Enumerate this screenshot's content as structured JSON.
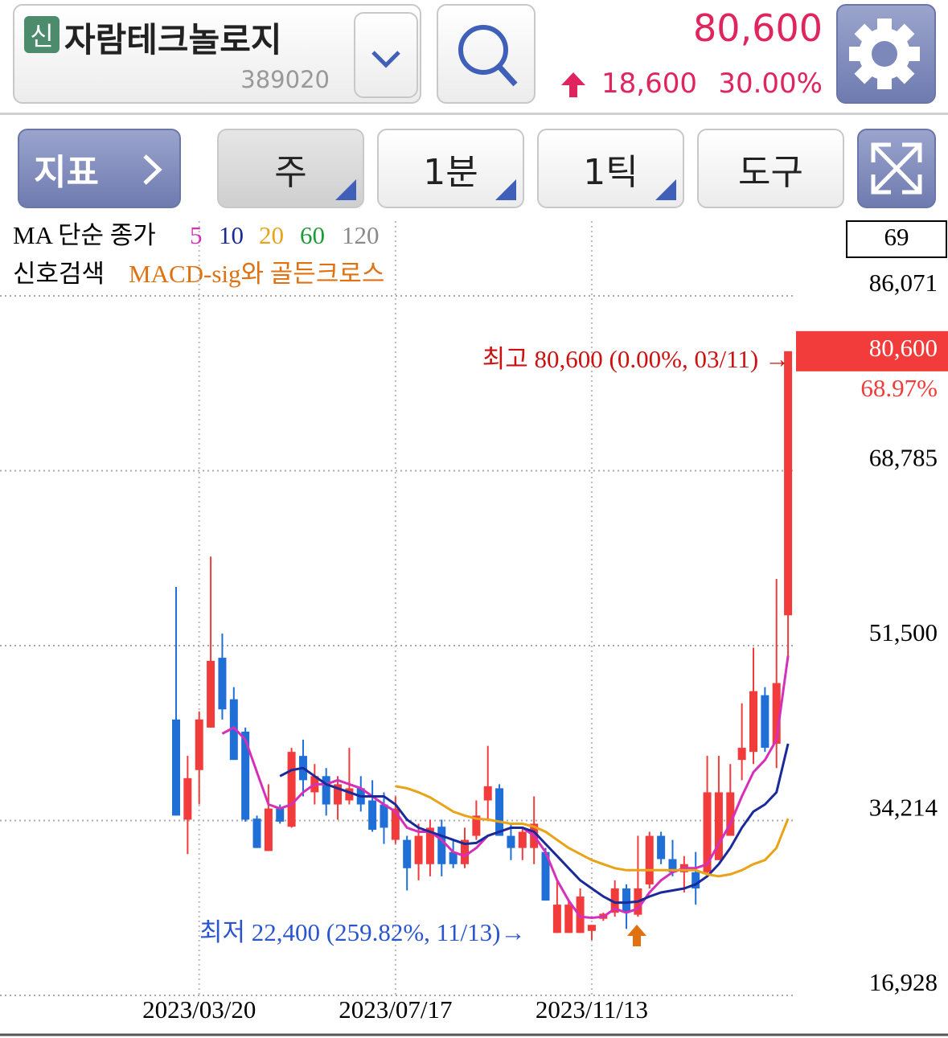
{
  "header": {
    "badge": "신",
    "name": "자람테크놀로지",
    "code": "389020",
    "price": "80,600",
    "change": "18,600",
    "change_pct": "30.00%"
  },
  "toolbar": {
    "indicator": "지표",
    "period": "주",
    "minute": "1분",
    "tick": "1틱",
    "tools": "도구"
  },
  "chart_data": {
    "type": "candlestick",
    "categories": [
      null,
      null,
      "2023/03/20",
      null,
      null,
      null,
      null,
      null,
      null,
      null,
      null,
      null,
      null,
      null,
      null,
      null,
      null,
      null,
      null,
      "2023/07/17",
      null,
      null,
      null,
      null,
      null,
      null,
      null,
      null,
      null,
      null,
      null,
      null,
      null,
      null,
      null,
      null,
      "2023/11/13",
      null,
      null,
      null,
      null,
      null,
      null,
      null,
      null,
      null,
      null,
      null,
      null,
      null,
      null,
      null,
      null,
      null
    ],
    "open": [
      44200,
      34300,
      39200,
      43400,
      50300,
      46200,
      43000,
      34400,
      31200,
      35400,
      33600,
      40600,
      37000,
      38600,
      35800,
      36200,
      37400,
      36200,
      35800,
      32300,
      32300,
      29900,
      29900,
      33600,
      31100,
      29900,
      32700,
      36200,
      37400,
      32700,
      31500,
      31500,
      31100,
      23100,
      23100,
      23100,
      23300,
      24500,
      25100,
      27500,
      24900,
      27900,
      32700,
      30400,
      29100,
      29100,
      29100,
      30300,
      32700,
      40200,
      41000,
      46600,
      41800,
      54500
    ],
    "high": [
      57300,
      40600,
      45000,
      60300,
      52700,
      47400,
      43400,
      34700,
      37800,
      35800,
      41400,
      42200,
      39800,
      39400,
      38600,
      41400,
      38600,
      38200,
      37000,
      36600,
      32700,
      33900,
      34300,
      34300,
      32300,
      33500,
      36200,
      41600,
      37800,
      33900,
      33500,
      36600,
      31500,
      28300,
      26300,
      27500,
      23900,
      25100,
      28300,
      27900,
      32700,
      33100,
      33100,
      32300,
      30700,
      31100,
      40600,
      40600,
      39800,
      45800,
      51300,
      47400,
      58100,
      80600
    ],
    "low": [
      34700,
      30900,
      35800,
      43400,
      44200,
      40200,
      34100,
      31500,
      31200,
      33900,
      33500,
      36600,
      35800,
      34700,
      34300,
      35800,
      35100,
      33100,
      31900,
      31900,
      27300,
      28300,
      28700,
      28700,
      29500,
      29500,
      32300,
      34300,
      32700,
      30300,
      30300,
      29900,
      26300,
      23100,
      23100,
      23100,
      22400,
      24300,
      24700,
      23500,
      24700,
      27500,
      29900,
      28700,
      27100,
      25900,
      28700,
      30300,
      32700,
      38200,
      39800,
      41000,
      39400,
      50200
    ],
    "close": [
      34700,
      38400,
      44200,
      50000,
      45200,
      40200,
      34300,
      31500,
      35400,
      34100,
      41000,
      38200,
      38600,
      35800,
      37800,
      37400,
      35800,
      33300,
      33500,
      35400,
      29500,
      32700,
      33500,
      29900,
      29900,
      32300,
      34700,
      37600,
      32700,
      31500,
      33100,
      33900,
      26300,
      25900,
      25900,
      26700,
      23900,
      25000,
      27500,
      25100,
      27500,
      32700,
      30400,
      29100,
      29900,
      27500,
      37000,
      37000,
      37000,
      41400,
      47000,
      41400,
      47800,
      80600
    ],
    "up_color": "#f23c3c",
    "down_color": "#1f6fd6",
    "ma_label": "MA 단순 종가",
    "series": [
      {
        "name": "5",
        "color": "#d62fb8",
        "values": [
          null,
          null,
          null,
          null,
          42800,
          43400,
          42200,
          39000,
          35800,
          35400,
          35800,
          37000,
          37800,
          37800,
          38200,
          37800,
          37400,
          36600,
          35800,
          35100,
          33500,
          33100,
          33100,
          32300,
          31100,
          30700,
          31500,
          32700,
          33100,
          33500,
          33500,
          32700,
          31100,
          28300,
          26300,
          24700,
          24600,
          24700,
          25500,
          25100,
          25500,
          27100,
          28300,
          29100,
          29500,
          29500,
          29900,
          31900,
          33900,
          36600,
          39000,
          40200,
          42200,
          50500
        ]
      },
      {
        "name": "10",
        "color": "#1a2a9a",
        "values": [
          null,
          null,
          null,
          null,
          null,
          null,
          null,
          null,
          null,
          38600,
          39200,
          39400,
          38600,
          37800,
          37400,
          37000,
          36600,
          36600,
          36600,
          35800,
          34300,
          33500,
          33100,
          32700,
          32300,
          31900,
          32000,
          32700,
          33100,
          33500,
          33500,
          33100,
          31900,
          30700,
          29500,
          28300,
          27500,
          26700,
          26100,
          26100,
          26200,
          26700,
          27100,
          27300,
          27500,
          27900,
          28700,
          29900,
          31500,
          33500,
          35100,
          35800,
          37000,
          41800
        ]
      },
      {
        "name": "20",
        "color": "#e8a317",
        "values": [
          null,
          null,
          null,
          null,
          null,
          null,
          null,
          null,
          null,
          null,
          null,
          null,
          null,
          null,
          null,
          null,
          null,
          null,
          null,
          37600,
          37400,
          37000,
          36500,
          35800,
          35100,
          34700,
          34400,
          34300,
          34100,
          33900,
          33900,
          33600,
          33100,
          32300,
          31500,
          30900,
          30300,
          29900,
          29500,
          29300,
          29300,
          29300,
          29300,
          29300,
          29300,
          29300,
          28900,
          28700,
          28900,
          29300,
          29900,
          30300,
          31500,
          34400
        ]
      },
      {
        "name": "60",
        "color": "#1f9a3a"
      },
      {
        "name": "120",
        "color": "#8a8a8a"
      }
    ],
    "signal_label": "신호검색",
    "signal_name": "MACD-sig와 골든크로스",
    "signal_color": "#e07010",
    "box_value": 69,
    "high_annotation": "최고 80,600 (0.00%, 03/11) →",
    "low_annotation": "최저 22,400 (259.82%, 11/13)→",
    "current_price": {
      "value": 80600,
      "label": "80,600"
    },
    "current_change": "68.97%",
    "ylim": [
      13193,
      93462
    ],
    "yticks": [
      {
        "value": 86071,
        "label": "86,071"
      },
      {
        "value": 68785,
        "label": "68,785"
      },
      {
        "value": 51500,
        "label": "51,500"
      },
      {
        "value": 34214,
        "label": "34,214"
      },
      {
        "value": 16928,
        "label": "16,928"
      }
    ],
    "grid": true
  }
}
